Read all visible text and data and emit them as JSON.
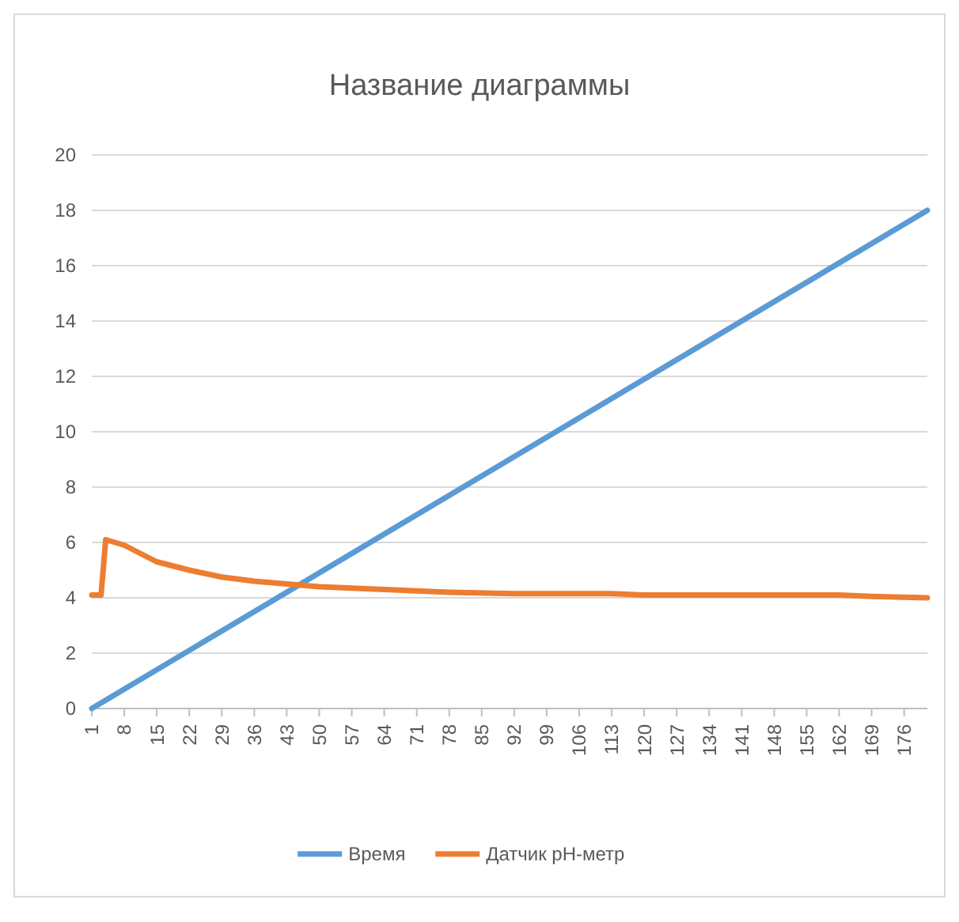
{
  "chart_data": {
    "type": "line",
    "title": "Название диаграммы",
    "xlim": [
      1,
      181
    ],
    "xticks": [
      1,
      8,
      15,
      22,
      29,
      36,
      43,
      50,
      57,
      64,
      71,
      78,
      85,
      92,
      99,
      106,
      113,
      120,
      127,
      134,
      141,
      148,
      155,
      162,
      169,
      176
    ],
    "ylim": [
      0,
      20
    ],
    "yticks": [
      0,
      2,
      4,
      6,
      8,
      10,
      12,
      14,
      16,
      18,
      20
    ],
    "grid": "y",
    "legend": "bottom",
    "marker": "none",
    "line_style": "solid",
    "series": [
      {
        "name": "Время",
        "color": "#5b9bd5",
        "x": [
          1,
          91,
          181
        ],
        "values": [
          0,
          9,
          18
        ]
      },
      {
        "name": "Датчик pH-метр",
        "color": "#ed7d31",
        "x": [
          1,
          3,
          4,
          8,
          15,
          22,
          29,
          36,
          43,
          50,
          57,
          64,
          78,
          92,
          113,
          120,
          162,
          169,
          181
        ],
        "values": [
          4.1,
          4.1,
          6.1,
          5.9,
          5.3,
          5.0,
          4.75,
          4.6,
          4.5,
          4.4,
          4.35,
          4.3,
          4.2,
          4.15,
          4.15,
          4.1,
          4.1,
          4.05,
          4.0
        ]
      }
    ]
  }
}
